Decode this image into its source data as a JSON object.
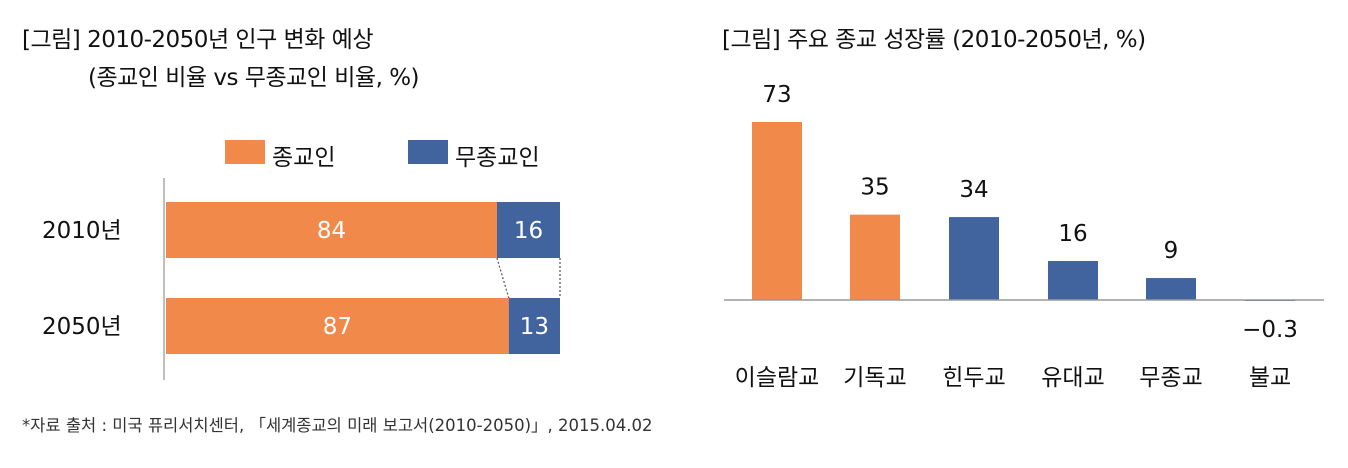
{
  "chart_data": [
    {
      "type": "bar",
      "orientation": "horizontal-stacked",
      "title": "[그림] 2010-2050년 인구 변화 예상",
      "subtitle": "(종교인 비율 vs 무종교인 비율, %)",
      "categories": [
        "2010년",
        "2050년"
      ],
      "series": [
        {
          "name": "종교인",
          "values": [
            84,
            87
          ],
          "color": "#F0894A"
        },
        {
          "name": "무종교인",
          "values": [
            16,
            13
          ],
          "color": "#41649E"
        }
      ],
      "xlim": [
        0,
        100
      ],
      "legend": "top",
      "grid": false
    },
    {
      "type": "bar",
      "title": "[그림] 주요 종교 성장률 (2010-2050년, %)",
      "categories": [
        "이슬람교",
        "기독교",
        "힌두교",
        "유대교",
        "무종교",
        "불교"
      ],
      "values": [
        73,
        35,
        34,
        16,
        9,
        -0.3
      ],
      "value_labels": [
        "73",
        "35",
        "34",
        "16",
        "9",
        "−0.3"
      ],
      "colors": [
        "#F0894A",
        "#F0894A",
        "#41649E",
        "#41649E",
        "#41649E",
        "#41649E"
      ],
      "ylim": [
        -1,
        80
      ],
      "grid": false
    }
  ],
  "footnote": "*자료 출처 : 미국 퓨리서치센터, 「세계종교의 미래 보고서(2010-2050)」, 2015.04.02"
}
